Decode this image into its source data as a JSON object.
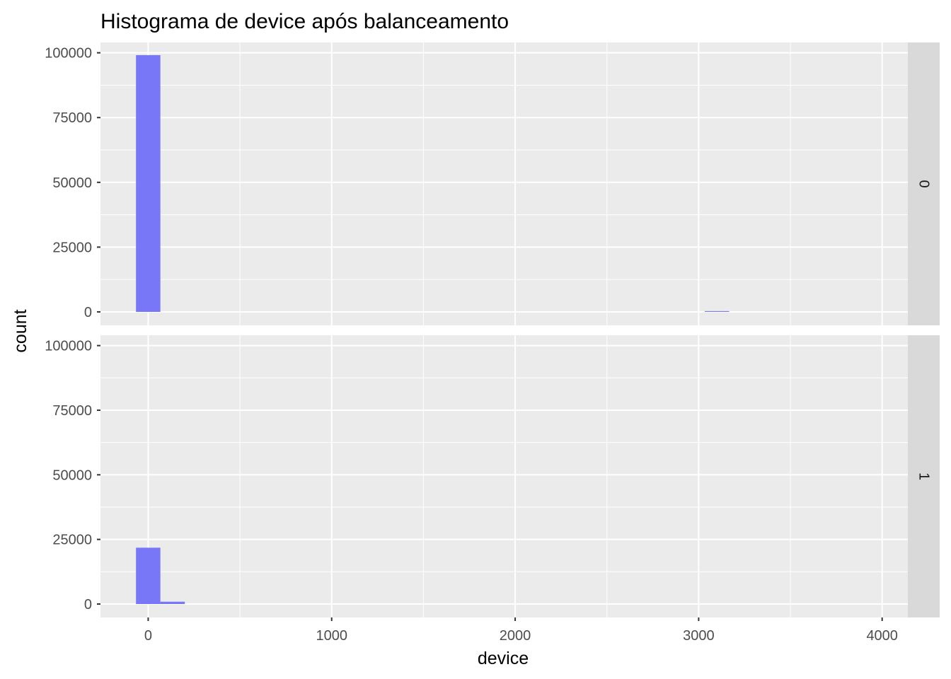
{
  "chart_data": {
    "type": "bar",
    "title": "Histograma de device após balanceamento",
    "xlabel": "device",
    "ylabel": "count",
    "xlim": [
      -260,
      4140
    ],
    "ylim": [
      -5200,
      104000
    ],
    "x_ticks": [
      "0",
      "1000",
      "2000",
      "3000",
      "4000"
    ],
    "y_ticks": [
      "0",
      "25000",
      "50000",
      "75000",
      "100000"
    ],
    "bin_width": 133,
    "bar_color": "#7777f7",
    "grid": true,
    "facets": [
      {
        "label": "0",
        "bins": [
          {
            "x": 0,
            "count": 99100
          },
          {
            "x": 3100,
            "count": 300
          }
        ]
      },
      {
        "label": "1",
        "bins": [
          {
            "x": 0,
            "count": 21800
          },
          {
            "x": 133,
            "count": 900
          }
        ]
      }
    ]
  }
}
